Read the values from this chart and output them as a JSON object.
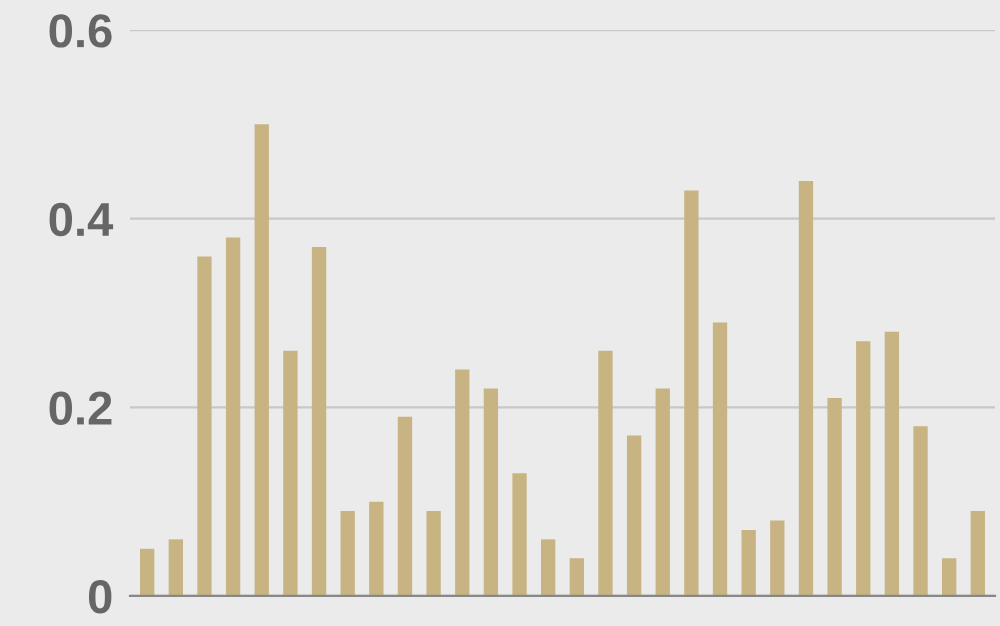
{
  "chart_data": {
    "type": "bar",
    "categories": [
      null,
      null,
      null,
      null,
      null,
      null,
      null,
      null,
      null,
      null,
      null,
      null,
      null,
      null,
      null,
      null,
      null,
      null,
      null,
      null,
      null,
      null,
      null,
      null,
      null,
      null,
      null,
      null,
      null,
      null
    ],
    "values": [
      0.05,
      0.06,
      0.36,
      0.38,
      0.5,
      0.26,
      0.37,
      0.09,
      0.1,
      0.19,
      0.09,
      0.24,
      0.22,
      0.13,
      0.06,
      0.04,
      0.26,
      0.17,
      0.22,
      0.43,
      0.29,
      0.07,
      0.08,
      0.44,
      0.21,
      0.27,
      0.28,
      0.18,
      0.04,
      0.09
    ],
    "color": "#c8b482",
    "ylim": [
      0,
      0.6
    ],
    "yticks": [
      {
        "value": 0,
        "label": "0"
      },
      0.2,
      0.4,
      0.6
    ],
    "grid": "y",
    "tick_labels": "y"
  }
}
